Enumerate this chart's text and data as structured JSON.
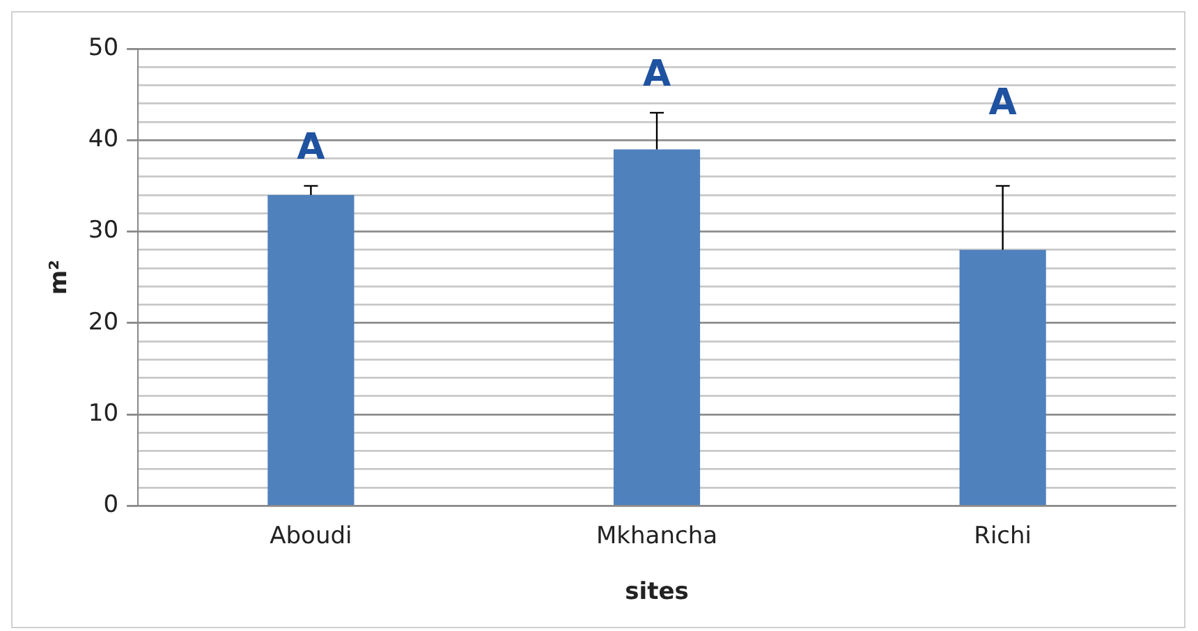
{
  "chart_data": {
    "type": "bar",
    "xlabel": "sites",
    "ylabel": "m²",
    "categories": [
      "Aboudi",
      "Mkhancha",
      "Richi"
    ],
    "values": [
      34,
      39,
      28
    ],
    "color": "#4f81bd",
    "errors": [
      [
        34,
        35
      ],
      [
        39,
        43
      ],
      [
        28,
        35
      ]
    ],
    "ylim": [
      0,
      50
    ],
    "yticks": [
      0,
      {
        "value": 2,
        "label": null
      },
      {
        "value": 4,
        "label": null
      },
      {
        "value": 6,
        "label": null
      },
      {
        "value": 8,
        "label": null
      },
      10,
      {
        "value": 12,
        "label": null
      },
      {
        "value": 14,
        "label": null
      },
      {
        "value": 16,
        "label": null
      },
      {
        "value": 18,
        "label": null
      },
      20,
      {
        "value": 22,
        "label": null
      },
      {
        "value": 24,
        "label": null
      },
      {
        "value": 26,
        "label": null
      },
      {
        "value": 28,
        "label": null
      },
      30,
      {
        "value": 32,
        "label": null
      },
      {
        "value": 34,
        "label": null
      },
      {
        "value": 36,
        "label": null
      },
      {
        "value": 38,
        "label": null
      },
      40,
      {
        "value": 42,
        "label": null
      },
      {
        "value": 44,
        "label": null
      },
      {
        "value": 46,
        "label": null
      },
      {
        "value": 48,
        "label": null
      },
      50
    ],
    "grid": true,
    "annotations": [
      "A",
      "A",
      "A"
    ]
  }
}
